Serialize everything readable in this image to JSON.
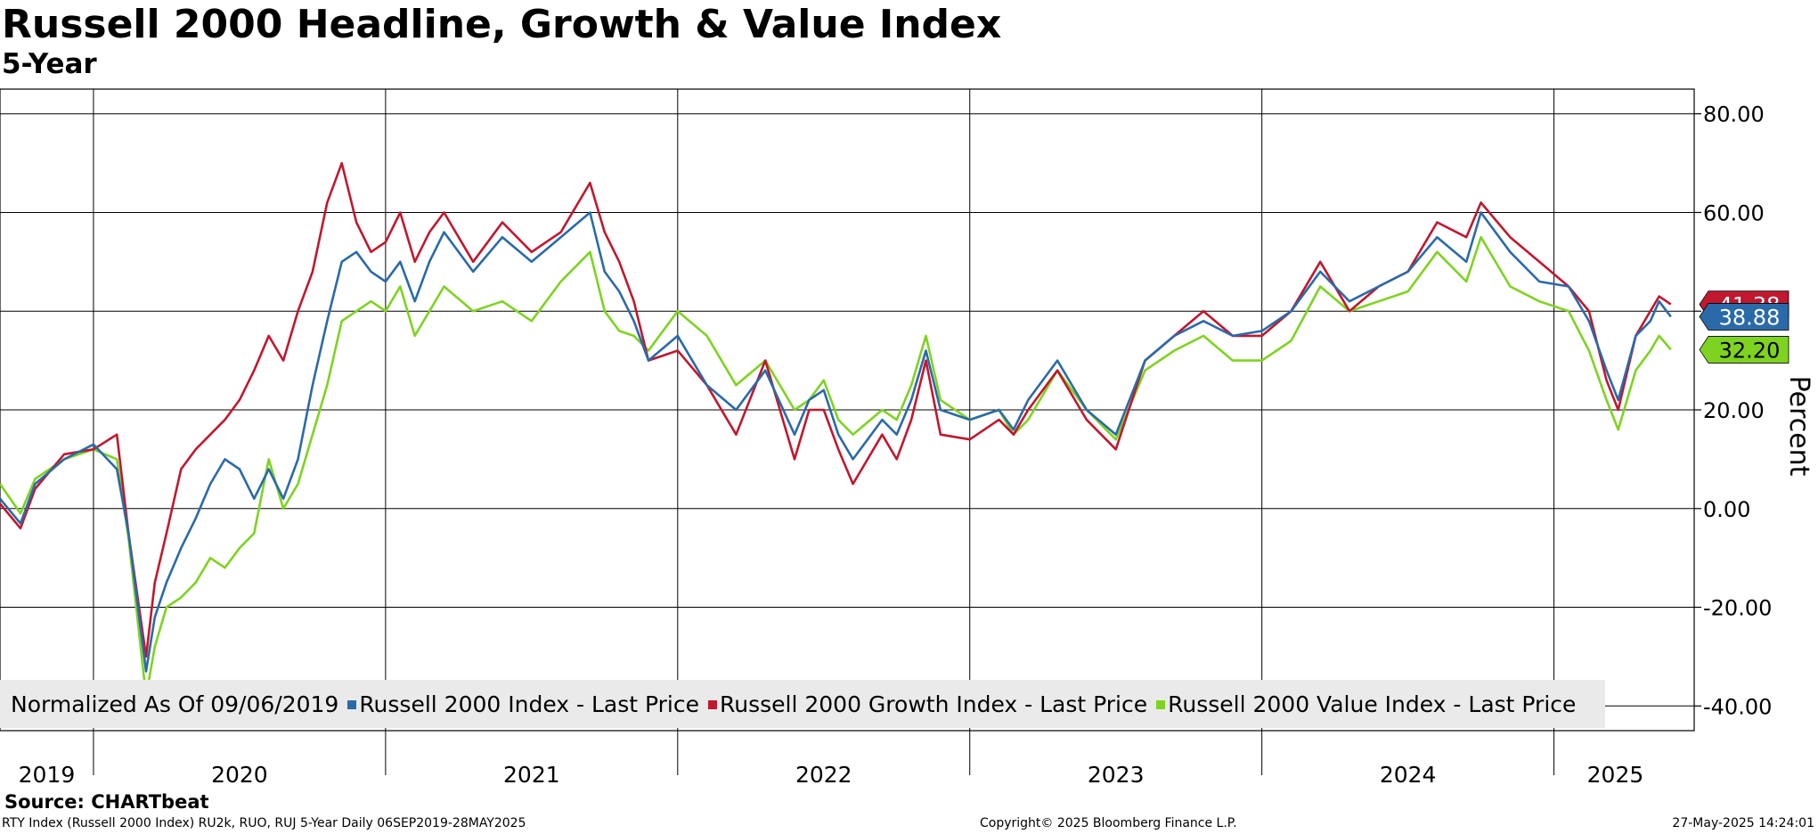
{
  "chart_data": {
    "type": "line",
    "title": "Russell 2000 Headline, Growth & Value Index",
    "subtitle": "5-Year",
    "ylabel": "Percent",
    "ylim": [
      -45,
      85
    ],
    "yticks": [
      "80.00",
      "60.00",
      "40.00",
      "20.00",
      "0.00",
      "-20.00",
      "-40.00"
    ],
    "ytick_values": [
      80,
      60,
      40,
      20,
      0,
      -20,
      -40
    ],
    "x_range": [
      2019.68,
      2025.48
    ],
    "x_labels": [
      "2019",
      "2020",
      "2021",
      "2022",
      "2023",
      "2024",
      "2025"
    ],
    "x_label_positions": [
      2019.84,
      2020.5,
      2021.5,
      2022.5,
      2023.5,
      2024.5,
      2025.21
    ],
    "grid": true,
    "legend_position": "bottom",
    "legend_prefix": "Normalized As Of 09/06/2019",
    "x": [
      2019.68,
      2019.75,
      2019.8,
      2019.9,
      2020.0,
      2020.08,
      2020.12,
      2020.18,
      2020.21,
      2020.25,
      2020.3,
      2020.35,
      2020.4,
      2020.45,
      2020.5,
      2020.55,
      2020.6,
      2020.65,
      2020.7,
      2020.75,
      2020.8,
      2020.85,
      2020.9,
      2020.95,
      2021.0,
      2021.05,
      2021.1,
      2021.15,
      2021.2,
      2021.3,
      2021.4,
      2021.5,
      2021.6,
      2021.7,
      2021.75,
      2021.8,
      2021.85,
      2021.9,
      2022.0,
      2022.1,
      2022.2,
      2022.3,
      2022.4,
      2022.45,
      2022.5,
      2022.55,
      2022.6,
      2022.7,
      2022.75,
      2022.8,
      2022.85,
      2022.9,
      2023.0,
      2023.1,
      2023.15,
      2023.2,
      2023.3,
      2023.4,
      2023.5,
      2023.6,
      2023.7,
      2023.8,
      2023.9,
      2024.0,
      2024.1,
      2024.2,
      2024.3,
      2024.4,
      2024.5,
      2024.6,
      2024.7,
      2024.75,
      2024.85,
      2024.95,
      2025.05,
      2025.12,
      2025.18,
      2025.22,
      2025.28,
      2025.33,
      2025.36,
      2025.4
    ],
    "series": [
      {
        "name": "Russell 2000 Index - Last Price",
        "color": "#2b6aa8",
        "last_label": "38.88",
        "last_value": 38.88,
        "values": [
          2,
          -3,
          5,
          10,
          13,
          8,
          -5,
          -33,
          -22,
          -15,
          -8,
          -2,
          5,
          10,
          8,
          2,
          8,
          2,
          10,
          25,
          38,
          50,
          52,
          48,
          46,
          50,
          42,
          50,
          56,
          48,
          55,
          50,
          55,
          60,
          48,
          44,
          38,
          30,
          35,
          25,
          20,
          28,
          15,
          22,
          24,
          15,
          10,
          18,
          15,
          22,
          32,
          20,
          18,
          20,
          16,
          22,
          30,
          20,
          15,
          30,
          35,
          38,
          35,
          36,
          40,
          48,
          42,
          45,
          48,
          55,
          50,
          60,
          52,
          46,
          45,
          38,
          28,
          22,
          35,
          38,
          42,
          38.88
        ]
      },
      {
        "name": "Russell 2000 Growth Index - Last Price",
        "color": "#c0182e",
        "last_label": "41.38",
        "last_value": 41.38,
        "values": [
          1,
          -4,
          4,
          11,
          12,
          15,
          -5,
          -30,
          -15,
          -5,
          8,
          12,
          15,
          18,
          22,
          28,
          35,
          30,
          40,
          48,
          62,
          70,
          58,
          52,
          54,
          60,
          50,
          56,
          60,
          50,
          58,
          52,
          56,
          66,
          56,
          50,
          42,
          30,
          32,
          25,
          15,
          30,
          10,
          20,
          20,
          12,
          5,
          15,
          10,
          18,
          30,
          15,
          14,
          18,
          15,
          20,
          28,
          18,
          12,
          30,
          35,
          40,
          35,
          35,
          40,
          50,
          40,
          45,
          48,
          58,
          55,
          62,
          55,
          50,
          45,
          40,
          26,
          20,
          35,
          40,
          43,
          41.38
        ]
      },
      {
        "name": "Russell 2000 Value Index - Last Price",
        "color": "#7ed321",
        "last_label": "32.20",
        "last_value": 32.2,
        "values": [
          5,
          -1,
          6,
          10,
          12,
          10,
          -6,
          -38,
          -28,
          -20,
          -18,
          -15,
          -10,
          -12,
          -8,
          -5,
          10,
          0,
          5,
          15,
          25,
          38,
          40,
          42,
          40,
          45,
          35,
          40,
          45,
          40,
          42,
          38,
          46,
          52,
          40,
          36,
          35,
          32,
          40,
          35,
          25,
          30,
          20,
          22,
          26,
          18,
          15,
          20,
          18,
          25,
          35,
          22,
          18,
          20,
          15,
          18,
          28,
          20,
          14,
          28,
          32,
          35,
          30,
          30,
          34,
          45,
          40,
          42,
          44,
          52,
          46,
          55,
          45,
          42,
          40,
          32,
          22,
          16,
          28,
          32,
          35,
          32.2
        ]
      }
    ]
  },
  "source_label": "Source: CHARTbeat",
  "footer": {
    "left": "RTY Index (Russell 2000 Index) RU2k, RUO, RUJ 5-Year  Daily 06SEP2019-28MAY2025",
    "center": "Copyright© 2025 Bloomberg Finance L.P.",
    "right": "27-May-2025 14:24:01"
  }
}
